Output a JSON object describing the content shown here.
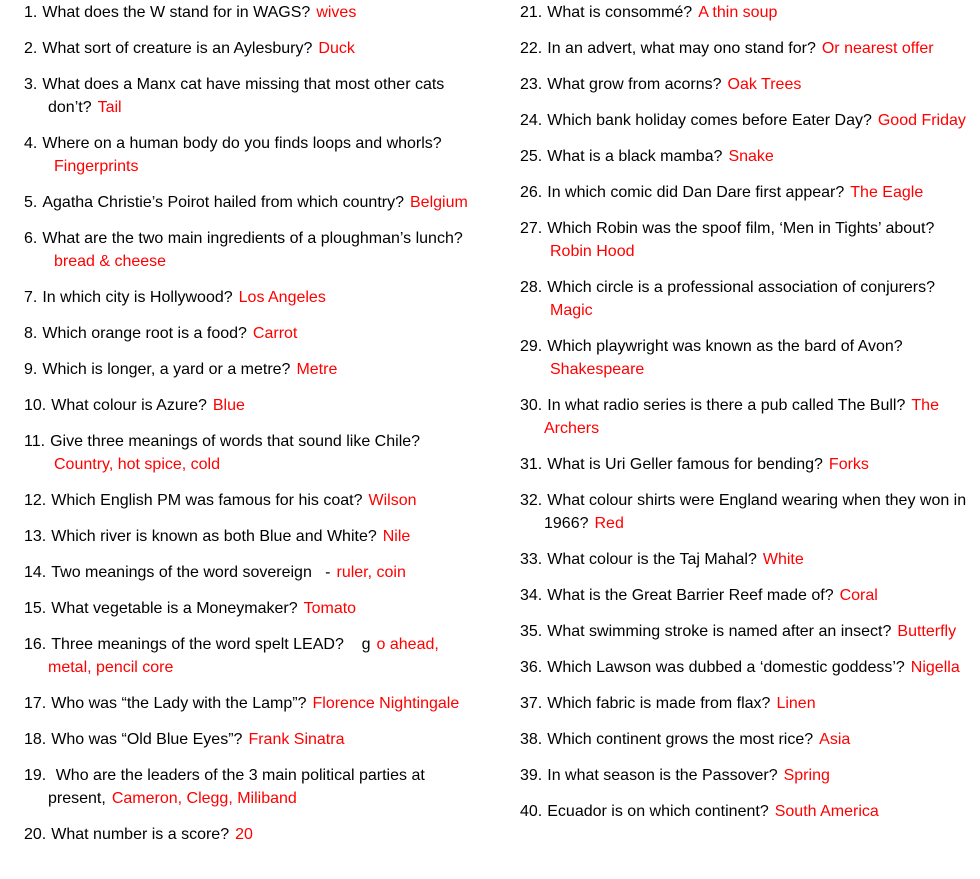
{
  "columns": [
    {
      "items": [
        {
          "number": "1.",
          "question": "What does the W stand for in WAGS?",
          "answer": "wives"
        },
        {
          "number": "2.",
          "question": "What sort of creature is an Aylesbury?",
          "answer": "Duck"
        },
        {
          "number": "3.",
          "question": "What does a Manx cat have missing that most other cats don’t?",
          "answer": "Tail"
        },
        {
          "number": "4.",
          "question": "Where on a human body do you finds loops and whorls?",
          "answer": "Fingerprints"
        },
        {
          "number": "5.",
          "question": "Agatha Christie’s Poirot hailed from which country?",
          "answer": "Belgium"
        },
        {
          "number": "6.",
          "question": "What are the two main ingredients of a ploughman’s lunch?",
          "answer": "bread & cheese"
        },
        {
          "number": "7.",
          "question": "In which city is Hollywood?",
          "answer": "Los Angeles"
        },
        {
          "number": "8.",
          "question": "Which orange root is a food?",
          "answer": "Carrot"
        },
        {
          "number": "9.",
          "question": "Which is longer, a yard or a metre?",
          "answer": "Metre"
        },
        {
          "number": "10.",
          "question": "What colour is Azure?",
          "answer": "Blue"
        },
        {
          "number": "11.",
          "question": "Give three meanings of words that sound like Chile?",
          "answer": "Country, hot spice, cold"
        },
        {
          "number": "12.",
          "question": "Which English PM was famous for his coat?",
          "answer": "Wilson"
        },
        {
          "number": "13.",
          "question": "Which river is known as both Blue and White?",
          "answer": "Nile"
        },
        {
          "number": "14.",
          "question": "Two meanings of the word sovereign   -",
          "answer": "ruler, coin"
        },
        {
          "number": "15.",
          "question": "What vegetable is a Moneymaker?",
          "answer": "Tomato"
        },
        {
          "number": "16.",
          "question": "Three meanings of the word spelt LEAD?    g",
          "answer": "o ahead, metal, pencil core"
        },
        {
          "number": "17.",
          "question": "Who was “the Lady with the Lamp”?",
          "answer": "Florence Nightingale"
        },
        {
          "number": "18.",
          "question": "Who was “Old Blue Eyes”?",
          "answer": "Frank Sinatra"
        },
        {
          "number": "19.",
          "question": " Who are the leaders of the 3 main political parties at present,",
          "answer": "Cameron, Clegg, Miliband"
        },
        {
          "number": "20.",
          "question": "What number is a score?",
          "answer": "20"
        }
      ]
    },
    {
      "items": [
        {
          "number": "21.",
          "question": "What is consommé?",
          "answer": "A thin soup"
        },
        {
          "number": "22.",
          "question": "In an advert, what may ono stand for?",
          "answer": "Or nearest offer"
        },
        {
          "number": "23.",
          "question": "What grow from acorns?",
          "answer": "Oak Trees"
        },
        {
          "number": "24.",
          "question": "Which bank holiday comes before Eater Day?",
          "answer": "Good Friday"
        },
        {
          "number": "25.",
          "question": "What is a black mamba?",
          "answer": "Snake"
        },
        {
          "number": "26.",
          "question": "In which comic did Dan Dare first appear?",
          "answer": "The Eagle"
        },
        {
          "number": "27.",
          "question": "Which Robin was the spoof film, ‘Men in Tights’ about?",
          "answer": "Robin Hood"
        },
        {
          "number": "28.",
          "question": "Which circle is a professional association of conjurers?",
          "answer": "Magic"
        },
        {
          "number": "29.",
          "question": "Which playwright was known as the bard of Avon?",
          "answer": "Shakespeare"
        },
        {
          "number": "30.",
          "question": "In what radio series is there a pub called The Bull?",
          "answer": "The Archers"
        },
        {
          "number": "31.",
          "question": "What is Uri Geller famous for bending?",
          "answer": "Forks"
        },
        {
          "number": "32.",
          "question": "What colour shirts were England wearing when they won in 1966?",
          "answer": "Red"
        },
        {
          "number": "33.",
          "question": "What colour is the Taj Mahal?",
          "answer": "White"
        },
        {
          "number": "34.",
          "question": "What is the Great Barrier Reef made of?",
          "answer": "Coral"
        },
        {
          "number": "35.",
          "question": "What swimming stroke is named after an insect?",
          "answer": "Butterfly"
        },
        {
          "number": "36.",
          "question": "Which Lawson was dubbed a ‘domestic goddess’?",
          "answer": "Nigella"
        },
        {
          "number": "37.",
          "question": "Which fabric is made from flax?",
          "answer": "Linen"
        },
        {
          "number": "38.",
          "question": "Which continent grows the most rice?",
          "answer": "Asia"
        },
        {
          "number": "39.",
          "question": "In what season is the Passover?",
          "answer": "Spring"
        },
        {
          "number": "40.",
          "question": "Ecuador is on which continent?",
          "answer": "South America"
        }
      ]
    }
  ]
}
